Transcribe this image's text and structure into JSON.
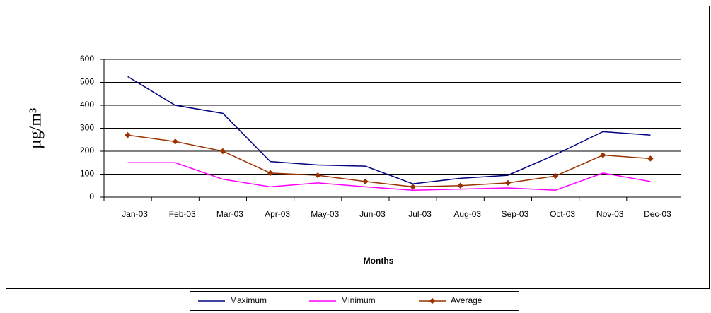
{
  "chart_data": {
    "type": "line",
    "x_label": "Months",
    "y_label": "µg/m³",
    "categories": [
      "Jan-03",
      "Feb-03",
      "Mar-03",
      "Apr-03",
      "May-03",
      "Jun-03",
      "Jul-03",
      "Aug-03",
      "Sep-03",
      "Oct-03",
      "Nov-03",
      "Dec-03"
    ],
    "series": [
      {
        "name": "Maximum",
        "color": "#000080",
        "marker": "none",
        "values": [
          525,
          400,
          365,
          155,
          140,
          135,
          58,
          82,
          95,
          185,
          285,
          270
        ]
      },
      {
        "name": "Minimum",
        "color": "#ff00ff",
        "marker": "none",
        "values": [
          150,
          150,
          78,
          45,
          62,
          45,
          30,
          35,
          40,
          30,
          105,
          68
        ]
      },
      {
        "name": "Average",
        "color": "#993300",
        "marker": "diamond",
        "values": [
          270,
          242,
          200,
          105,
          95,
          68,
          45,
          50,
          62,
          92,
          183,
          168
        ]
      }
    ],
    "ylim": [
      0,
      600
    ],
    "yticks": [
      0,
      100,
      200,
      300,
      400,
      500,
      600
    ],
    "grid": true,
    "legend": "bottom"
  }
}
